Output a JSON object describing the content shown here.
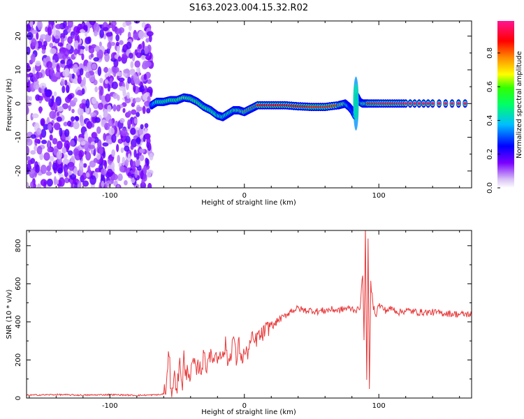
{
  "title": "S163.2023.004.15.32.R02",
  "chart_data": [
    {
      "type": "heatmap",
      "xlabel": "Height of straight line (km)",
      "ylabel": "Frequency (Hz)",
      "xlim": [
        -162,
        169
      ],
      "ylim": [
        -25,
        24.5
      ],
      "xticks": [
        -100,
        0,
        100
      ],
      "yticks": [
        -20,
        -10,
        0,
        10,
        20
      ],
      "colorbar": {
        "label": "Normalized spectral amplitude",
        "ticks": [
          0.0,
          0.2,
          0.4,
          0.6,
          0.8
        ],
        "range": [
          0,
          0.99
        ],
        "colormap": [
          "#e0ccf2",
          "#7b00ff",
          "#0000ff",
          "#00bfff",
          "#00ff66",
          "#00ff00",
          "#ffff00",
          "#ff8c00",
          "#ff0000",
          "#ff1493"
        ]
      },
      "noise_region": {
        "x_range": [
          -162,
          -69
        ],
        "f_range": [
          -25,
          24.5
        ],
        "amplitude": 0.15
      },
      "ridge": {
        "x": [
          -69,
          -65,
          -60,
          -55,
          -50,
          -45,
          -40,
          -35,
          -30,
          -25,
          -20,
          -16,
          -12,
          -8,
          -4,
          0,
          5,
          10,
          20,
          30,
          40,
          50,
          60,
          70,
          75,
          78,
          80,
          82,
          84,
          86,
          88,
          92,
          100,
          110,
          120,
          140,
          169
        ],
        "f": [
          -0.5,
          0.5,
          0.5,
          1.0,
          1.0,
          1.8,
          1.5,
          0.5,
          -1.0,
          -2.0,
          -3.5,
          -4.0,
          -3.0,
          -2.0,
          -2.0,
          -2.5,
          -1.5,
          -0.5,
          -0.5,
          -0.5,
          -0.8,
          -1.0,
          -1.0,
          -0.5,
          0.0,
          -1.0,
          -2.0,
          -3.5,
          2.0,
          0.5,
          0.0,
          0.0,
          0.0,
          0.0,
          0.0,
          0.0,
          0.0
        ],
        "amplitude": [
          0.3,
          0.45,
          0.5,
          0.55,
          0.6,
          0.65,
          0.6,
          0.6,
          0.55,
          0.5,
          0.5,
          0.45,
          0.55,
          0.6,
          0.7,
          0.8,
          0.85,
          0.9,
          0.9,
          0.9,
          0.9,
          0.85,
          0.85,
          0.85,
          0.7,
          0.4,
          0.35,
          0.35,
          0.4,
          0.5,
          0.7,
          0.9,
          0.95,
          0.95,
          0.98,
          0.98,
          0.98
        ]
      }
    },
    {
      "type": "line",
      "xlabel": "Height of straight line (km)",
      "ylabel": "SNR (10 * v/v)",
      "xlim": [
        -162,
        169
      ],
      "ylim": [
        0,
        880
      ],
      "xticks": [
        -100,
        0,
        100
      ],
      "yticks": [
        0,
        200,
        400,
        600,
        800
      ],
      "series": [
        {
          "color": "#e8393a",
          "x": [
            -162,
            -140,
            -120,
            -100,
            -80,
            -70,
            -62,
            -60,
            -58,
            -57,
            -56,
            -55,
            -54,
            -52,
            -50,
            -48,
            -46,
            -45,
            -44,
            -42,
            -40,
            -38,
            -36,
            -34,
            -32,
            -30,
            -28,
            -26,
            -24,
            -22,
            -20,
            -18,
            -16,
            -14,
            -12,
            -10,
            -8,
            -6,
            -4,
            -2,
            0,
            2,
            4,
            6,
            8,
            10,
            12,
            15,
            18,
            20,
            22,
            25,
            28,
            30,
            35,
            40,
            45,
            50,
            55,
            60,
            65,
            70,
            75,
            80,
            84,
            86,
            88,
            89,
            90,
            91,
            92,
            93,
            94,
            96,
            98,
            100,
            105,
            110,
            115,
            120,
            130,
            140,
            150,
            160,
            169
          ],
          "y": [
            15,
            18,
            15,
            18,
            14,
            16,
            18,
            25,
            60,
            150,
            250,
            90,
            40,
            110,
            60,
            180,
            70,
            230,
            100,
            160,
            110,
            200,
            130,
            170,
            150,
            230,
            160,
            250,
            180,
            240,
            200,
            260,
            210,
            280,
            180,
            240,
            330,
            190,
            290,
            200,
            240,
            230,
            280,
            310,
            290,
            330,
            320,
            350,
            370,
            390,
            380,
            410,
            420,
            430,
            460,
            470,
            460,
            460,
            455,
            460,
            465,
            460,
            470,
            470,
            460,
            480,
            650,
            300,
            880,
            90,
            820,
            40,
            600,
            480,
            440,
            490,
            460,
            470,
            450,
            460,
            450,
            450,
            445,
            440,
            440
          ]
        }
      ]
    }
  ]
}
